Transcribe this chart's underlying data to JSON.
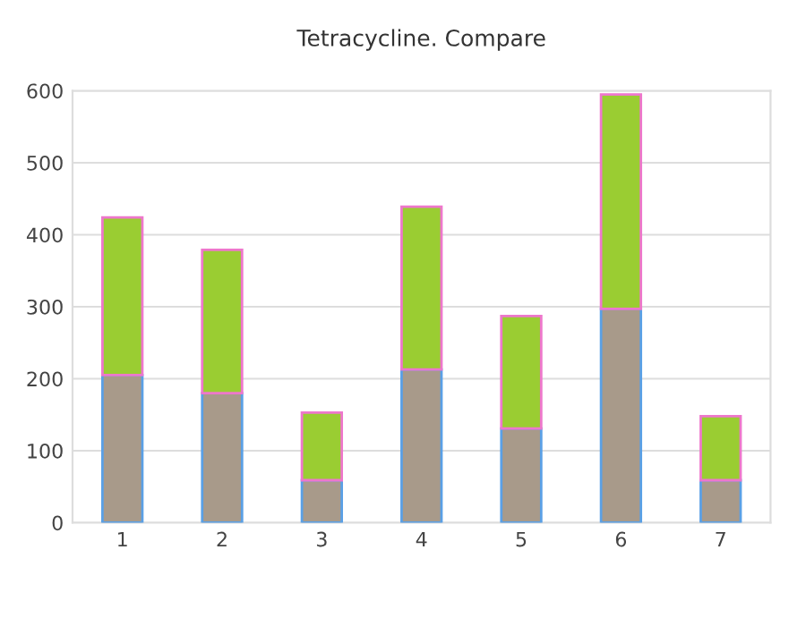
{
  "chart_data": {
    "type": "bar",
    "title": "Tetracycline. Compare",
    "stacked": true,
    "categories": [
      "1",
      "2",
      "3",
      "4",
      "5",
      "6",
      "7"
    ],
    "series": [
      {
        "color": "#a89a8a",
        "values": [
          205,
          180,
          59,
          213,
          131,
          297,
          59
        ]
      },
      {
        "color": "#9acd32",
        "values": [
          219,
          199,
          94,
          226,
          156,
          298,
          89
        ]
      }
    ],
    "ylim": [
      0,
      600
    ],
    "yticks": [
      0,
      100,
      200,
      300,
      400,
      500,
      600
    ],
    "grid": "y"
  }
}
